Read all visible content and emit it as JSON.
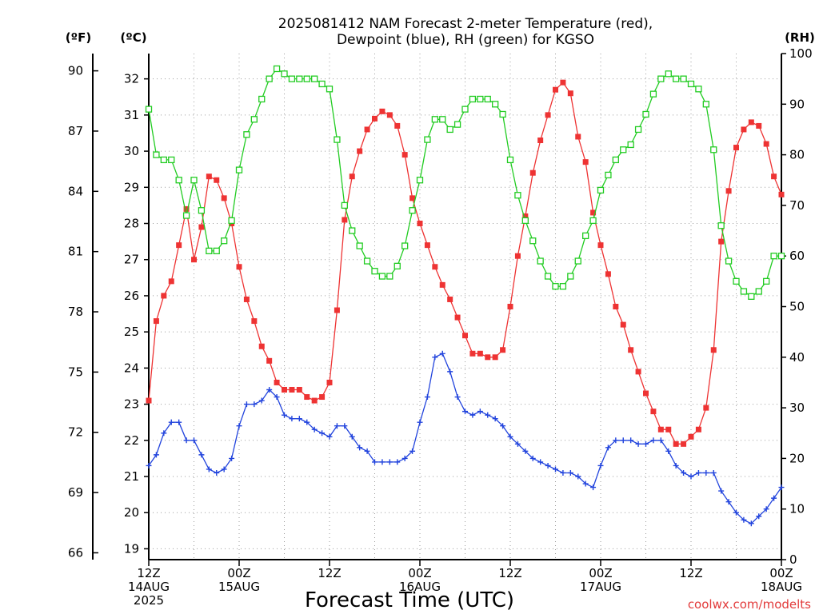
{
  "chart_data": {
    "type": "line",
    "title_lines": [
      "2025081412 NAM Forecast 2-meter Temperature (red),",
      "Dewpoint (blue), RH (green) for KGSO"
    ],
    "xlabel": "Forecast Time (UTC)",
    "credit": "coolwx.com/modelts",
    "unit_f": "(ºF)",
    "unit_c": "(ºC)",
    "unit_rh": "(RH)",
    "x_range_hours": [
      0,
      84
    ],
    "celsius_range": [
      18.7,
      32.7
    ],
    "rh_range": [
      0,
      100
    ],
    "x_ticks": [
      {
        "hour": 0,
        "lines": [
          "12Z",
          "14AUG",
          "2025"
        ]
      },
      {
        "hour": 12,
        "lines": [
          "00Z",
          "15AUG"
        ]
      },
      {
        "hour": 24,
        "lines": [
          "12Z"
        ]
      },
      {
        "hour": 36,
        "lines": [
          "00Z",
          "16AUG"
        ]
      },
      {
        "hour": 48,
        "lines": [
          "12Z"
        ]
      },
      {
        "hour": 60,
        "lines": [
          "00Z",
          "17AUG"
        ]
      },
      {
        "hour": 72,
        "lines": [
          "12Z"
        ]
      },
      {
        "hour": 84,
        "lines": [
          "00Z",
          "18AUG"
        ]
      }
    ],
    "fahrenheit_ticks": [
      66,
      69,
      72,
      75,
      78,
      81,
      84,
      87,
      90
    ],
    "celsius_ticks": [
      19,
      20,
      21,
      22,
      23,
      24,
      25,
      26,
      27,
      28,
      29,
      30,
      31,
      32
    ],
    "rh_ticks": [
      0,
      10,
      20,
      30,
      40,
      50,
      60,
      70,
      80,
      90,
      100
    ],
    "series": [
      {
        "name": "Temperature",
        "color": "#ee3333",
        "marker": "filled-square",
        "axis": "celsius",
        "x": [
          0,
          1,
          2,
          3,
          4,
          5,
          6,
          7,
          8,
          9,
          10,
          11,
          12,
          13,
          14,
          15,
          16,
          17,
          18,
          19,
          20,
          21,
          22,
          23,
          24,
          25,
          26,
          27,
          28,
          29,
          30,
          31,
          32,
          33,
          34,
          35,
          36,
          37,
          38,
          39,
          40,
          41,
          42,
          43,
          44,
          45,
          46,
          47,
          48,
          49,
          50,
          51,
          52,
          53,
          54,
          55,
          56,
          57,
          58,
          59,
          60,
          61,
          62,
          63,
          64,
          65,
          66,
          67,
          68,
          69,
          70,
          71,
          72,
          73,
          74,
          75,
          76,
          77,
          78,
          79,
          80,
          81,
          82,
          83,
          84
        ],
        "values": [
          23.1,
          25.3,
          26.0,
          26.4,
          27.4,
          28.4,
          27.0,
          27.9,
          29.3,
          29.2,
          28.7,
          28.0,
          26.8,
          25.9,
          25.3,
          24.6,
          24.2,
          23.6,
          23.4,
          23.4,
          23.4,
          23.2,
          23.1,
          23.2,
          23.6,
          25.6,
          28.1,
          29.3,
          30.0,
          30.6,
          30.9,
          31.1,
          31.0,
          30.7,
          29.9,
          28.7,
          28.0,
          27.4,
          26.8,
          26.3,
          25.9,
          25.4,
          24.9,
          24.4,
          24.4,
          24.3,
          24.3,
          24.5,
          25.7,
          27.1,
          28.2,
          29.4,
          30.3,
          31.0,
          31.7,
          31.9,
          31.6,
          30.4,
          29.7,
          28.3,
          27.4,
          26.6,
          25.7,
          25.2,
          24.5,
          23.9,
          23.3,
          22.8,
          22.3,
          22.3,
          21.9,
          21.9,
          22.1,
          22.3,
          22.9,
          24.5,
          27.5,
          28.9,
          30.1,
          30.6,
          30.8,
          30.7,
          30.2,
          29.3,
          28.8
        ]
      },
      {
        "name": "Dewpoint",
        "color": "#2244dd",
        "marker": "plus",
        "axis": "celsius",
        "x": [
          0,
          1,
          2,
          3,
          4,
          5,
          6,
          7,
          8,
          9,
          10,
          11,
          12,
          13,
          14,
          15,
          16,
          17,
          18,
          19,
          20,
          21,
          22,
          23,
          24,
          25,
          26,
          27,
          28,
          29,
          30,
          31,
          32,
          33,
          34,
          35,
          36,
          37,
          38,
          39,
          40,
          41,
          42,
          43,
          44,
          45,
          46,
          47,
          48,
          49,
          50,
          51,
          52,
          53,
          54,
          55,
          56,
          57,
          58,
          59,
          60,
          61,
          62,
          63,
          64,
          65,
          66,
          67,
          68,
          69,
          70,
          71,
          72,
          73,
          74,
          75,
          76,
          77,
          78,
          79,
          80,
          81,
          82,
          83,
          84
        ],
        "values": [
          21.3,
          21.6,
          22.2,
          22.5,
          22.5,
          22.0,
          22.0,
          21.6,
          21.2,
          21.1,
          21.2,
          21.5,
          22.4,
          23.0,
          23.0,
          23.1,
          23.4,
          23.2,
          22.7,
          22.6,
          22.6,
          22.5,
          22.3,
          22.2,
          22.1,
          22.4,
          22.4,
          22.1,
          21.8,
          21.7,
          21.4,
          21.4,
          21.4,
          21.4,
          21.5,
          21.7,
          22.5,
          23.2,
          24.3,
          24.4,
          23.9,
          23.2,
          22.8,
          22.7,
          22.8,
          22.7,
          22.6,
          22.4,
          22.1,
          21.9,
          21.7,
          21.5,
          21.4,
          21.3,
          21.2,
          21.1,
          21.1,
          21.0,
          20.8,
          20.7,
          21.3,
          21.8,
          22.0,
          22.0,
          22.0,
          21.9,
          21.9,
          22.0,
          22.0,
          21.7,
          21.3,
          21.1,
          21.0,
          21.1,
          21.1,
          21.1,
          20.6,
          20.3,
          20.0,
          19.8,
          19.7,
          19.9,
          20.1,
          20.4,
          20.7
        ]
      },
      {
        "name": "RH",
        "color": "#22cc22",
        "marker": "open-square",
        "axis": "rh",
        "x": [
          0,
          1,
          2,
          3,
          4,
          5,
          6,
          7,
          8,
          9,
          10,
          11,
          12,
          13,
          14,
          15,
          16,
          17,
          18,
          19,
          20,
          21,
          22,
          23,
          24,
          25,
          26,
          27,
          28,
          29,
          30,
          31,
          32,
          33,
          34,
          35,
          36,
          37,
          38,
          39,
          40,
          41,
          42,
          43,
          44,
          45,
          46,
          47,
          48,
          49,
          50,
          51,
          52,
          53,
          54,
          55,
          56,
          57,
          58,
          59,
          60,
          61,
          62,
          63,
          64,
          65,
          66,
          67,
          68,
          69,
          70,
          71,
          72,
          73,
          74,
          75,
          76,
          77,
          78,
          79,
          80,
          81,
          82,
          83,
          84
        ],
        "values": [
          89,
          80,
          79,
          79,
          75,
          68,
          75,
          69,
          61,
          61,
          63,
          67,
          77,
          84,
          87,
          91,
          95,
          97,
          96,
          95,
          95,
          95,
          95,
          94,
          93,
          83,
          70,
          65,
          62,
          59,
          57,
          56,
          56,
          58,
          62,
          69,
          75,
          83,
          87,
          87,
          85,
          86,
          89,
          91,
          91,
          91,
          90,
          88,
          79,
          72,
          67,
          63,
          59,
          56,
          54,
          54,
          56,
          59,
          64,
          67,
          73,
          76,
          79,
          81,
          82,
          85,
          88,
          92,
          95,
          96,
          95,
          95,
          94,
          93,
          90,
          81,
          66,
          59,
          55,
          53,
          52,
          53,
          55,
          60,
          60
        ]
      }
    ]
  }
}
